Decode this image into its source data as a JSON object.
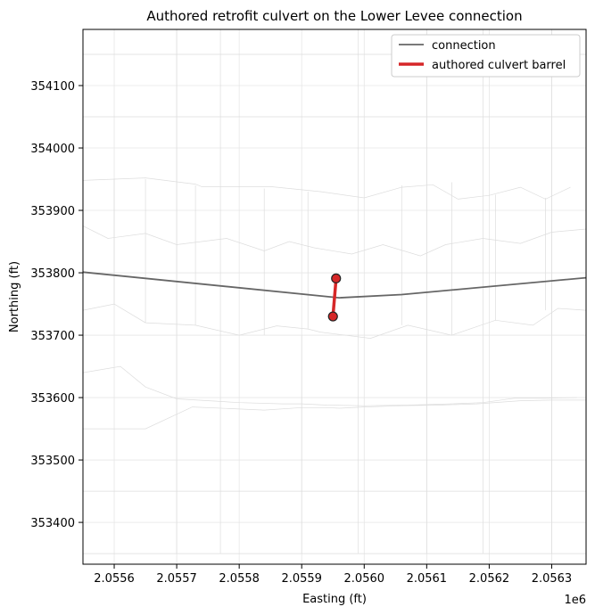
{
  "chart_data": {
    "type": "line",
    "title": "Authored retrofit culvert on the Lower Levee connection",
    "xlabel": "Easting (ft)",
    "ylabel": "Northing (ft)",
    "x_offset_label": "1e6",
    "xlim": [
      2055550,
      2056355
    ],
    "ylim": [
      353333,
      354190
    ],
    "xticks": [
      2055600,
      2055700,
      2055800,
      2055900,
      2056000,
      2056100,
      2056200,
      2056300
    ],
    "xtick_labels": [
      "2.0556",
      "2.0557",
      "2.0558",
      "2.0559",
      "2.0560",
      "2.0561",
      "2.0562",
      "2.0563"
    ],
    "yticks": [
      353400,
      353500,
      353600,
      353700,
      353800,
      353900,
      354000,
      354100
    ],
    "ytick_labels": [
      "353400",
      "353500",
      "353600",
      "353700",
      "353800",
      "353900",
      "354000",
      "354100"
    ],
    "grid": true,
    "legend_position": "top-right",
    "colors": {
      "connection": "#666666",
      "culvert": "#d62728",
      "mesh": "#dddddd",
      "grid": "#e6e6e6"
    },
    "series": [
      {
        "name": "connection",
        "x": [
          2055550,
          2055960,
          2056060,
          2056355
        ],
        "y": [
          353801,
          353760,
          353765,
          353792
        ]
      },
      {
        "name": "authored culvert barrel",
        "x": [
          2055950,
          2055955
        ],
        "y": [
          353730,
          353791
        ]
      }
    ],
    "mesh_polylines": [
      {
        "x": [
          2055550,
          2055600,
          2055650,
          2055725,
          2055840,
          2055900,
          2055940,
          2055960,
          2056000,
          2056060,
          2056120,
          2056180,
          2056250,
          2056300,
          2056355
        ],
        "y": [
          353550,
          353550,
          353550,
          353585,
          353580,
          353584,
          353584,
          353583,
          353585,
          353587,
          353588,
          353590,
          353595,
          353596,
          353596
        ]
      },
      {
        "x": [
          2055550,
          2055600,
          2055650,
          2055730,
          2055800,
          2055860,
          2055910,
          2055930,
          2056010,
          2056070,
          2056140,
          2056210,
          2056270,
          2056310,
          2056355
        ],
        "y": [
          353740,
          353750,
          353720,
          353716,
          353700,
          353715,
          353710,
          353705,
          353695,
          353716,
          353700,
          353724,
          353716,
          353743,
          353740
        ]
      },
      {
        "x": [
          2055550,
          2055590,
          2055650,
          2055700,
          2055780,
          2055840,
          2055880,
          2055920,
          2055980,
          2056030,
          2056090,
          2056130,
          2056190,
          2056250,
          2056300,
          2056355
        ],
        "y": [
          353875,
          353855,
          353863,
          353845,
          353855,
          353835,
          353850,
          353840,
          353830,
          353845,
          353827,
          353845,
          353855,
          353847,
          353865,
          353870
        ]
      },
      {
        "x": [
          2055550,
          2055600,
          2055650,
          2055730,
          2055740,
          2055850,
          2055930,
          2056000,
          2056060,
          2056110,
          2056150,
          2056200,
          2056250,
          2056290,
          2056330
        ],
        "y": [
          353948,
          353950,
          353952,
          353942,
          353938,
          353938,
          353930,
          353920,
          353937,
          353941,
          353918,
          353924,
          353937,
          353918,
          353937
        ]
      },
      {
        "x": [
          2055550,
          2055610,
          2055650,
          2055700,
          2055800,
          2055870,
          2055900,
          2055940,
          2056000,
          2056070,
          2056140,
          2056190,
          2056240,
          2056290,
          2056340
        ],
        "y": [
          353640,
          353650,
          353617,
          353598,
          353592,
          353590,
          353590,
          353588,
          353587,
          353588,
          353590,
          353592,
          353599,
          353599,
          353600
        ]
      },
      {
        "x": [
          2055600,
          2055600
        ],
        "y": [
          353750,
          353950
        ]
      },
      {
        "x": [
          2055650,
          2055650
        ],
        "y": [
          353720,
          353950
        ]
      },
      {
        "x": [
          2055730,
          2055730
        ],
        "y": [
          353716,
          353940
        ]
      },
      {
        "x": [
          2055840,
          2055840
        ],
        "y": [
          353700,
          353935
        ]
      },
      {
        "x": [
          2055910,
          2055910
        ],
        "y": [
          353710,
          353930
        ]
      },
      {
        "x": [
          2056060,
          2056060
        ],
        "y": [
          353716,
          353940
        ]
      },
      {
        "x": [
          2056140,
          2056140
        ],
        "y": [
          353700,
          353945
        ]
      },
      {
        "x": [
          2056210,
          2056210
        ],
        "y": [
          353724,
          353925
        ]
      },
      {
        "x": [
          2056290,
          2056290
        ],
        "y": [
          353740,
          353920
        ]
      },
      {
        "x": [
          2055700,
          2055700
        ],
        "y": [
          353350,
          354190
        ]
      },
      {
        "x": [
          2055770,
          2055770
        ],
        "y": [
          353350,
          354190
        ]
      },
      {
        "x": [
          2055900,
          2055900
        ],
        "y": [
          353350,
          353700
        ]
      },
      {
        "x": [
          2055990,
          2055990
        ],
        "y": [
          353350,
          354190
        ]
      },
      {
        "x": [
          2056100,
          2056100
        ],
        "y": [
          353350,
          354190
        ]
      },
      {
        "x": [
          2056190,
          2056190
        ],
        "y": [
          353350,
          354190
        ]
      },
      {
        "x": [
          2056300,
          2056300
        ],
        "y": [
          353350,
          354190
        ]
      },
      {
        "x": [
          2055550,
          2056355
        ],
        "y": [
          354150,
          354150
        ]
      },
      {
        "x": [
          2055550,
          2056355
        ],
        "y": [
          354050,
          354050
        ]
      },
      {
        "x": [
          2055550,
          2056355
        ],
        "y": [
          353450,
          353450
        ]
      },
      {
        "x": [
          2055550,
          2056355
        ],
        "y": [
          353350,
          353350
        ]
      }
    ]
  }
}
